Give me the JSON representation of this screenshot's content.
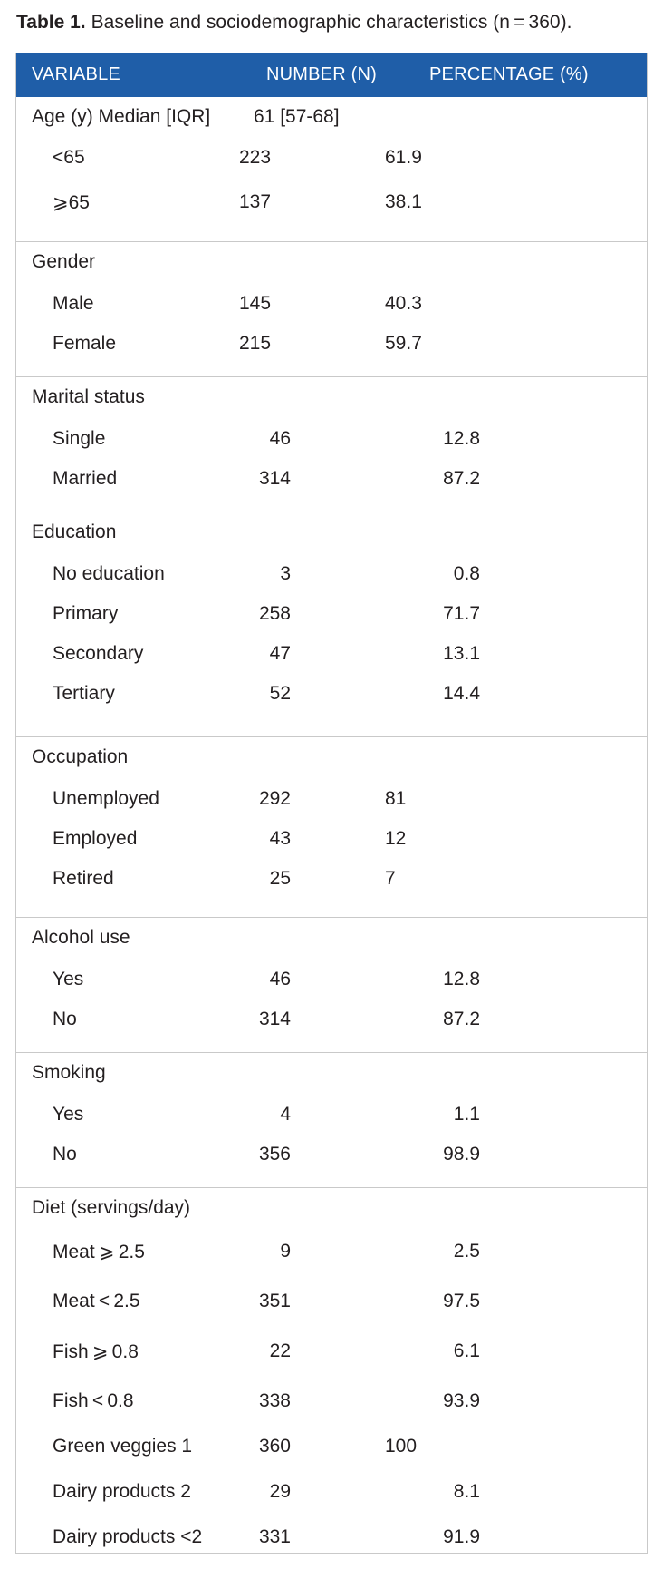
{
  "caption": {
    "label": "Table 1.",
    "text": "Baseline and sociodemographic characteristics (n = 360)."
  },
  "headers": {
    "variable": "VARIABLE",
    "number": "NUMBER (N)",
    "percentage": "PERCENTAGE (%)"
  },
  "colors": {
    "header_bg": "#1f5ea8",
    "header_text": "#ffffff",
    "rule": "#c9c9c9"
  },
  "sections": [
    {
      "title": "Age (y) Median [IQR]",
      "title_n": "61 [57-68]",
      "rows": [
        {
          "label": "<65",
          "n": "223",
          "pct": "61.9"
        },
        {
          "label": "⩾65",
          "n": "137",
          "pct": "38.1"
        }
      ]
    },
    {
      "title": "Gender",
      "rows": [
        {
          "label": "Male",
          "n": "145",
          "pct": "40.3"
        },
        {
          "label": "Female",
          "n": "215",
          "pct": "59.7"
        }
      ]
    },
    {
      "title": "Marital status",
      "rows": [
        {
          "label": "Single",
          "n": "46",
          "pct": "12.8"
        },
        {
          "label": "Married",
          "n": "314",
          "pct": "87.2"
        }
      ]
    },
    {
      "title": "Education",
      "rows": [
        {
          "label": "No education",
          "n": "3",
          "pct": "0.8"
        },
        {
          "label": "Primary",
          "n": "258",
          "pct": "71.7"
        },
        {
          "label": "Secondary",
          "n": "47",
          "pct": "13.1"
        },
        {
          "label": "Tertiary",
          "n": "52",
          "pct": "14.4"
        }
      ]
    },
    {
      "title": "Occupation",
      "rows": [
        {
          "label": "Unemployed",
          "n": "292",
          "pct": "81"
        },
        {
          "label": "Employed",
          "n": "43",
          "pct": "12"
        },
        {
          "label": "Retired",
          "n": "25",
          "pct": "7"
        }
      ]
    },
    {
      "title": "Alcohol use",
      "rows": [
        {
          "label": "Yes",
          "n": "46",
          "pct": "12.8"
        },
        {
          "label": "No",
          "n": "314",
          "pct": "87.2"
        }
      ]
    },
    {
      "title": "Smoking",
      "rows": [
        {
          "label": "Yes",
          "n": "4",
          "pct": "1.1"
        },
        {
          "label": "No",
          "n": "356",
          "pct": "98.9"
        }
      ]
    },
    {
      "title": "Diet (servings/day)",
      "rows": [
        {
          "label": "Meat ⩾ 2.5",
          "n": "9",
          "pct": "2.5"
        },
        {
          "label": "Meat < 2.5",
          "n": "351",
          "pct": "97.5"
        },
        {
          "label": "Fish ⩾ 0.8",
          "n": "22",
          "pct": "6.1"
        },
        {
          "label": "Fish < 0.8",
          "n": "338",
          "pct": "93.9"
        },
        {
          "label": "Green veggies 1",
          "n": "360",
          "pct": "100"
        },
        {
          "label": "Dairy products 2",
          "n": "29",
          "pct": "8.1"
        },
        {
          "label": "Dairy products <2",
          "n": "331",
          "pct": "91.9"
        }
      ]
    }
  ]
}
